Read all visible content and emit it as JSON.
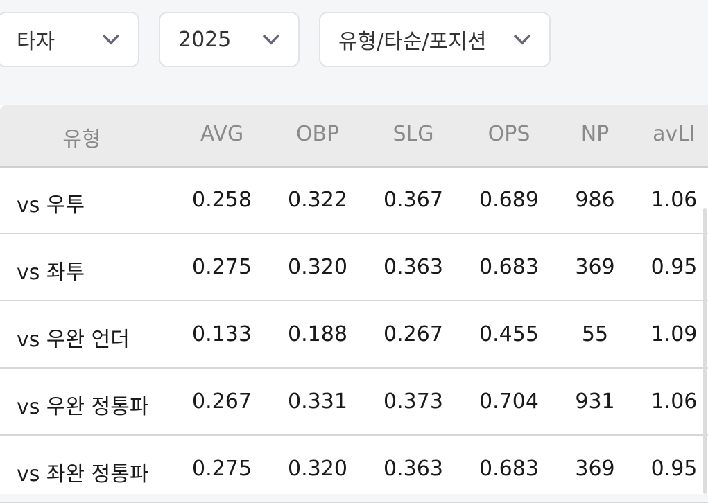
{
  "filters": [
    "타자",
    "2025",
    "유형/타순/포지션"
  ],
  "table": {
    "header": [
      "유형",
      "AVG",
      "OBP",
      "SLG",
      "OPS",
      "NP",
      "avLI"
    ],
    "rows": [
      [
        "vs 우투",
        "0.258",
        "0.322",
        "0.367",
        "0.689",
        "986",
        "1.06"
      ],
      [
        "vs 좌투",
        "0.275",
        "0.320",
        "0.363",
        "0.683",
        "369",
        "0.95"
      ],
      [
        "vs 우완 언더",
        "0.133",
        "0.188",
        "0.267",
        "0.455",
        "55",
        "1.09"
      ],
      [
        "vs 우완 정통파",
        "0.267",
        "0.331",
        "0.373",
        "0.704",
        "931",
        "1.06"
      ],
      [
        "vs 좌완 정통파",
        "0.275",
        "0.320",
        "0.363",
        "0.683",
        "369",
        "0.95"
      ]
    ]
  }
}
